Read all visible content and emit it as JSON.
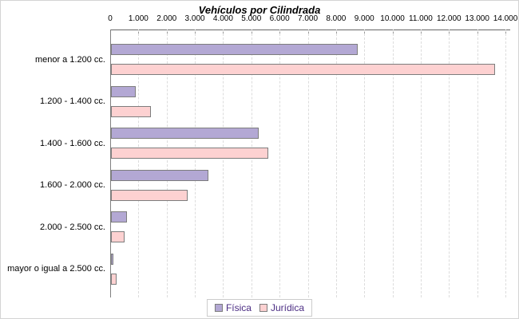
{
  "chart_data": {
    "type": "bar",
    "orientation": "horizontal",
    "title": "Vehículos por Cilindrada",
    "categories": [
      "menor a 1.200 cc.",
      "1.200 - 1.400 cc.",
      "1.400 - 1.600 cc.",
      "1.600 - 2.000 cc.",
      "2.000 - 2.500 cc.",
      "mayor o igual a 2.500 cc."
    ],
    "series": [
      {
        "name": "Física",
        "color": "#b3a8d4",
        "values": [
          8750,
          870,
          5220,
          3460,
          575,
          95
        ]
      },
      {
        "name": "Jurídica",
        "color": "#fdd1d1",
        "values": [
          13600,
          1400,
          5580,
          2720,
          490,
          205
        ]
      }
    ],
    "x_axis": {
      "min": 0,
      "max": 14000,
      "tick_step": 1000,
      "position": "top",
      "tick_labels": [
        "0",
        "1.000",
        "2.000",
        "3.000",
        "4.000",
        "5.000",
        "6.000",
        "7.000",
        "8.000",
        "9.000",
        "10.000",
        "11.000",
        "12.000",
        "13.000",
        "14.000"
      ]
    },
    "grid": "vertical-dashed",
    "legend": {
      "position": "bottom",
      "entries": [
        "Física",
        "Jurídica"
      ]
    },
    "colors": {
      "series_fisica": "#b3a8d4",
      "series_juridica": "#fdd1d1",
      "bar_border": "#7d7d7d",
      "grid_line": "#dcdcdc",
      "axis_line": "#666666",
      "tick_mark": "#999999",
      "legend_text": "#4b2d83",
      "background": "#ffffff"
    }
  }
}
